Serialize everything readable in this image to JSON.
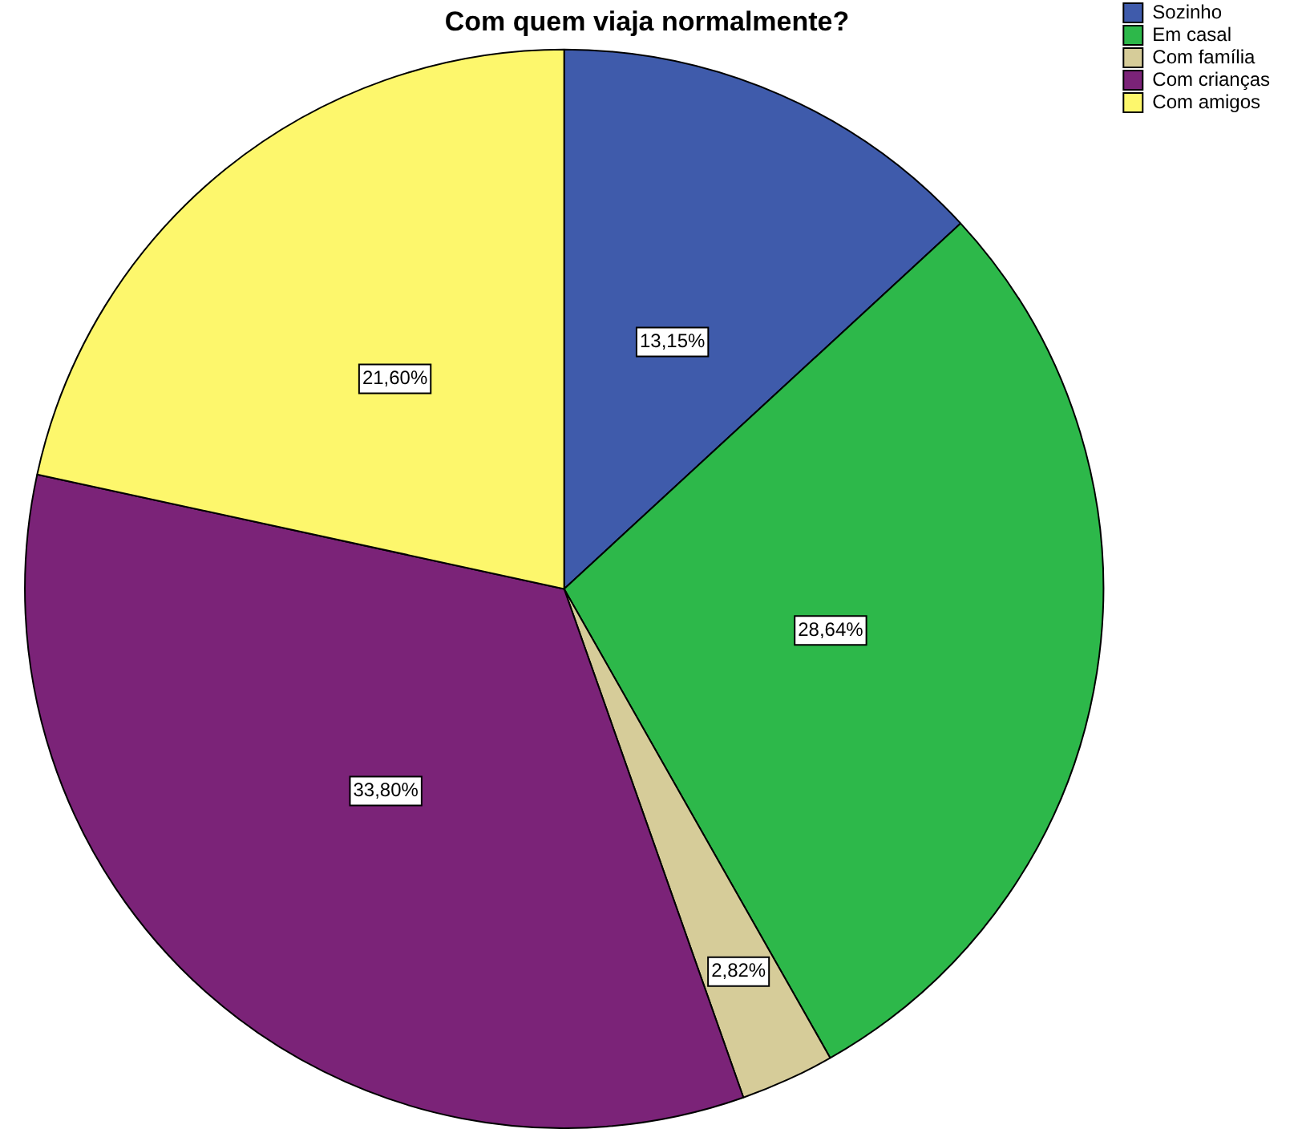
{
  "chart_data": {
    "type": "pie",
    "title": "Com quem viaja normalmente?",
    "categories": [
      "Sozinho",
      "Em casal",
      "Com família",
      "Com crianças",
      "Com amigos"
    ],
    "values": [
      13.15,
      28.64,
      2.82,
      33.8,
      21.6
    ],
    "colors": [
      "#3f5bab",
      "#2db84a",
      "#d6cc99",
      "#7b2378",
      "#fdf76c"
    ],
    "value_labels": [
      "13,15%",
      "28,64%",
      "2,82%",
      "33,80%",
      "21,60%"
    ],
    "legend": "top right"
  }
}
